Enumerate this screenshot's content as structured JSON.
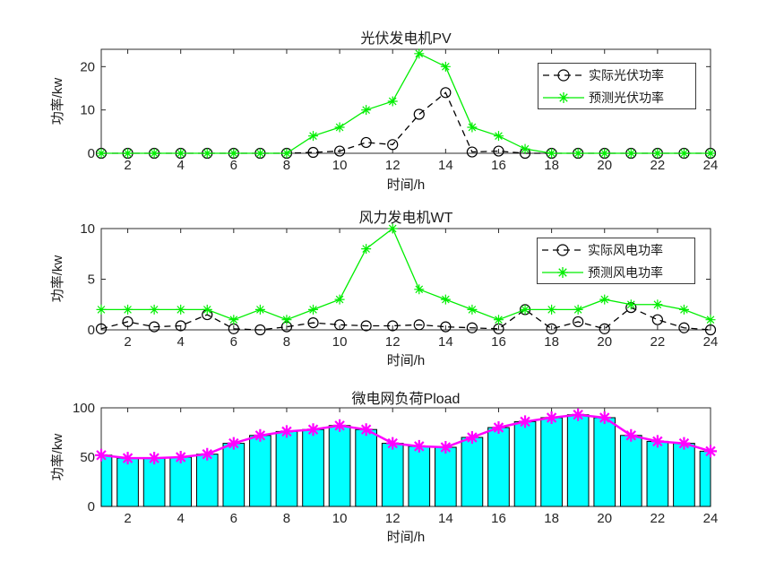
{
  "figure_background": "#ffffff",
  "axis_color": "#2b2b2b",
  "tick_label_color": "#262626",
  "chart_data": [
    {
      "type": "line",
      "title": "光伏发电机PV",
      "xlabel": "时间/h",
      "ylabel": "功率/kw",
      "x": [
        1,
        2,
        3,
        4,
        5,
        6,
        7,
        8,
        9,
        10,
        11,
        12,
        13,
        14,
        15,
        16,
        17,
        18,
        19,
        20,
        21,
        22,
        23,
        24
      ],
      "xticks": [
        2,
        4,
        6,
        8,
        10,
        12,
        14,
        16,
        18,
        20,
        22,
        24
      ],
      "yticks": [
        0,
        10,
        20
      ],
      "xlim": [
        1,
        24
      ],
      "ylim": [
        0,
        24
      ],
      "grid": false,
      "legend_position": "upper-right",
      "series": [
        {
          "name": "实际光伏功率",
          "color": "#000000",
          "line": "dashed",
          "marker": "circle",
          "values": [
            0,
            0,
            0,
            0,
            0,
            0,
            0,
            0,
            0.2,
            0.5,
            2.5,
            2,
            9,
            14,
            0.3,
            0.5,
            0,
            0,
            0,
            0,
            0,
            0,
            0,
            0
          ]
        },
        {
          "name": "预测光伏功率",
          "color": "#00ee00",
          "line": "solid",
          "marker": "asterisk",
          "values": [
            0,
            0,
            0,
            0,
            0,
            0,
            0,
            0,
            4,
            6,
            10,
            12,
            23,
            20,
            6,
            4,
            1,
            0,
            0,
            0,
            0,
            0,
            0,
            0
          ]
        }
      ]
    },
    {
      "type": "line",
      "title": "风力发电机WT",
      "xlabel": "时间/h",
      "ylabel": "功率/kw",
      "x": [
        1,
        2,
        3,
        4,
        5,
        6,
        7,
        8,
        9,
        10,
        11,
        12,
        13,
        14,
        15,
        16,
        17,
        18,
        19,
        20,
        21,
        22,
        23,
        24
      ],
      "xticks": [
        2,
        4,
        6,
        8,
        10,
        12,
        14,
        16,
        18,
        20,
        22,
        24
      ],
      "yticks": [
        0,
        5,
        10
      ],
      "xlim": [
        1,
        24
      ],
      "ylim": [
        0,
        10
      ],
      "grid": false,
      "legend_position": "upper-right",
      "series": [
        {
          "name": "实际风电功率",
          "color": "#000000",
          "line": "dashed",
          "marker": "circle",
          "values": [
            0.1,
            0.8,
            0.3,
            0.4,
            1.5,
            0.1,
            0,
            0.3,
            0.7,
            0.5,
            0.4,
            0.4,
            0.5,
            0.3,
            0.2,
            0.1,
            2,
            0.1,
            0.8,
            0.1,
            2.2,
            1,
            0.2,
            0
          ]
        },
        {
          "name": "预测风电功率",
          "color": "#00ee00",
          "line": "solid",
          "marker": "asterisk",
          "values": [
            2,
            2,
            2,
            2,
            2,
            1,
            2,
            1,
            2,
            3,
            8,
            10,
            4,
            3,
            2,
            1,
            2,
            2,
            2,
            3,
            2.5,
            2.5,
            2,
            1
          ]
        }
      ]
    },
    {
      "type": "bar",
      "title": "微电网负荷Pload",
      "xlabel": "时间/h",
      "ylabel": "功率/kw",
      "x": [
        1,
        2,
        3,
        4,
        5,
        6,
        7,
        8,
        9,
        10,
        11,
        12,
        13,
        14,
        15,
        16,
        17,
        18,
        19,
        20,
        21,
        22,
        23,
        24
      ],
      "xticks": [
        2,
        4,
        6,
        8,
        10,
        12,
        14,
        16,
        18,
        20,
        22,
        24
      ],
      "yticks": [
        0,
        50,
        100
      ],
      "xlim": [
        1,
        24
      ],
      "ylim": [
        0,
        100
      ],
      "grid": false,
      "bar_color": "#00ffff",
      "bar_edge_color": "#000000",
      "bar_width": 0.8,
      "overlay_line_color": "#ff00ff",
      "overlay_marker": "asterisk",
      "values": [
        52,
        49,
        49,
        50,
        53,
        64,
        72,
        76,
        78,
        82,
        78,
        64,
        61,
        60,
        70,
        80,
        86,
        90,
        93,
        90,
        72,
        66,
        64,
        56
      ]
    }
  ]
}
